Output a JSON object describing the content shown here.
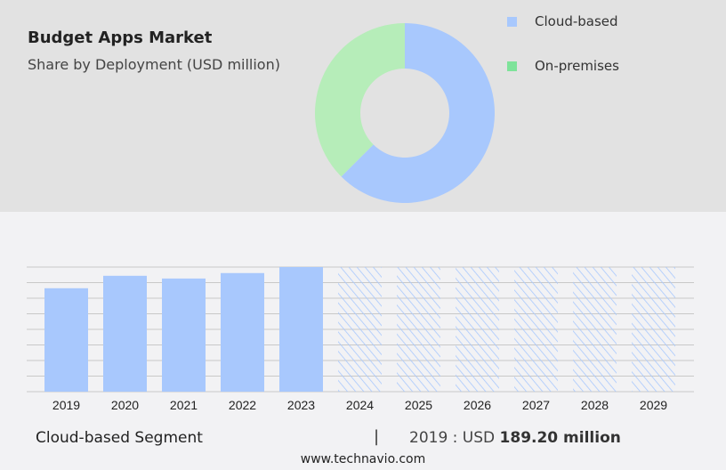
{
  "header": {
    "title": "Budget Apps Market",
    "subtitle": "Share by Deployment (USD million)"
  },
  "chart_data": [
    {
      "type": "pie",
      "donut": true,
      "slices": [
        {
          "name": "Cloud-based",
          "share": 62.5,
          "color": "#a8c8fd"
        },
        {
          "name": "On-premises",
          "share": 37.5,
          "color": "#b6edb9"
        }
      ],
      "legend": [
        {
          "label": "Cloud-based",
          "color": "#a8c8fd"
        },
        {
          "label": "On-premises",
          "color": "#7ee39a"
        }
      ],
      "legend_placement": "right"
    },
    {
      "type": "bar",
      "categories": [
        "2019",
        "2020",
        "2021",
        "2022",
        "2023",
        "2024",
        "2025",
        "2026",
        "2027",
        "2028",
        "2029"
      ],
      "values": [
        189.2,
        212,
        207,
        217,
        228,
        null,
        null,
        null,
        null,
        null,
        null
      ],
      "forecast_hatched": [
        "2024",
        "2025",
        "2026",
        "2027",
        "2028",
        "2029"
      ],
      "ylim": [
        0,
        228
      ],
      "grid": true,
      "color": "#a8c8fd"
    }
  ],
  "footer": {
    "segment": "Cloud-based Segment",
    "separator": "|",
    "year_label": "2019 : USD",
    "value": "189.20 million",
    "site": "www.technavio.com"
  }
}
